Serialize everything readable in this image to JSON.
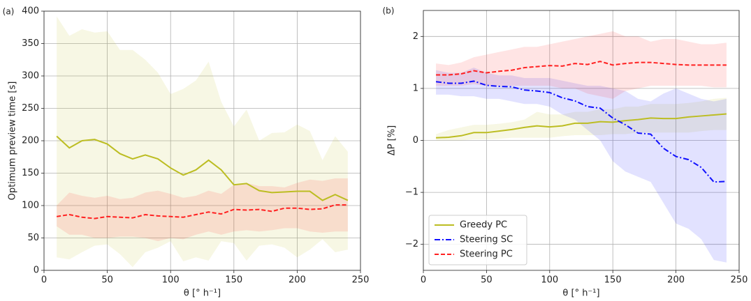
{
  "chart_data": [
    {
      "type": "line",
      "panel_label": "(a)",
      "x_label": "θ [° h⁻¹]",
      "y_label": "Optimum preview time [s]",
      "x": [
        10,
        20,
        30,
        40,
        50,
        60,
        70,
        80,
        90,
        100,
        110,
        120,
        130,
        140,
        150,
        160,
        170,
        180,
        190,
        200,
        210,
        220,
        230,
        240
      ],
      "xlim": [
        0,
        250
      ],
      "xticks": [
        0,
        50,
        100,
        150,
        200,
        250
      ],
      "ylim": [
        0,
        400
      ],
      "yticks": [
        0,
        50,
        100,
        150,
        200,
        250,
        300,
        350,
        400
      ],
      "grid": true,
      "series": [
        {
          "color": "#bcbd22",
          "dash": "solid",
          "values": [
            207,
            189,
            200,
            202,
            195,
            180,
            172,
            178,
            172,
            158,
            147,
            155,
            170,
            155,
            132,
            134,
            123,
            120,
            121,
            122,
            122,
            108,
            117,
            108
          ],
          "lower": [
            20,
            17,
            28,
            38,
            40,
            25,
            5,
            28,
            35,
            45,
            14,
            20,
            15,
            45,
            42,
            15,
            38,
            40,
            35,
            20,
            32,
            48,
            28,
            32
          ],
          "upper": [
            392,
            362,
            372,
            367,
            369,
            340,
            340,
            325,
            305,
            272,
            280,
            293,
            322,
            260,
            222,
            248,
            200,
            212,
            213,
            225,
            215,
            170,
            207,
            183
          ]
        },
        {
          "color": "#ff2020",
          "dash": "dashed",
          "values": [
            83,
            86,
            82,
            80,
            83,
            82,
            81,
            86,
            84,
            83,
            82,
            86,
            90,
            87,
            94,
            93,
            94,
            91,
            96,
            96,
            94,
            95,
            101,
            101
          ],
          "lower": [
            68,
            55,
            55,
            50,
            50,
            52,
            52,
            50,
            45,
            50,
            48,
            55,
            60,
            55,
            60,
            62,
            60,
            62,
            65,
            65,
            60,
            58,
            60,
            60
          ],
          "upper": [
            100,
            120,
            115,
            112,
            115,
            110,
            112,
            120,
            123,
            118,
            112,
            115,
            123,
            118,
            132,
            135,
            130,
            130,
            128,
            135,
            140,
            138,
            142,
            142
          ]
        }
      ]
    },
    {
      "type": "line",
      "panel_label": "(b)",
      "x_label": "θ [° h⁻¹]",
      "y_label": "ΔP [%]",
      "x": [
        10,
        20,
        30,
        40,
        50,
        60,
        70,
        80,
        90,
        100,
        110,
        120,
        130,
        140,
        150,
        160,
        170,
        180,
        190,
        200,
        210,
        220,
        230,
        240
      ],
      "xlim": [
        0,
        250
      ],
      "xticks": [
        0,
        50,
        100,
        150,
        200,
        250
      ],
      "ylim": [
        -2.5,
        2.5
      ],
      "yticks": [
        {
          "value": -2,
          "label": "−2"
        },
        {
          "value": -1,
          "label": "−1"
        },
        0,
        1,
        2
      ],
      "grid": true,
      "legend": "lower left",
      "series": [
        {
          "name": "Greedy PC",
          "color": "#bcbd22",
          "dash": "solid",
          "values": [
            0.05,
            0.06,
            0.09,
            0.15,
            0.15,
            0.18,
            0.21,
            0.25,
            0.28,
            0.26,
            0.28,
            0.33,
            0.33,
            0.36,
            0.35,
            0.38,
            0.4,
            0.43,
            0.42,
            0.42,
            0.45,
            0.47,
            0.49,
            0.51
          ],
          "lower": [
            0,
            0,
            0,
            0.02,
            0.02,
            0.03,
            0.05,
            0.05,
            0.05,
            0.05,
            0.08,
            0.1,
            0.1,
            0.1,
            0.12,
            0.12,
            0.15,
            0.15,
            0.15,
            0.15,
            0.15,
            0.18,
            0.2,
            0.2
          ],
          "upper": [
            0.12,
            0.2,
            0.25,
            0.3,
            0.3,
            0.32,
            0.35,
            0.4,
            0.55,
            0.5,
            0.5,
            0.55,
            0.55,
            0.6,
            0.6,
            0.65,
            0.65,
            0.7,
            0.7,
            0.7,
            0.72,
            0.75,
            0.8,
            0.82
          ]
        },
        {
          "name": "Steering SC",
          "color": "#1010ff",
          "dash": "dashdot",
          "values": [
            1.13,
            1.1,
            1.1,
            1.14,
            1.06,
            1.04,
            1.03,
            0.97,
            0.95,
            0.92,
            0.82,
            0.76,
            0.65,
            0.62,
            0.43,
            0.3,
            0.14,
            0.12,
            -0.15,
            -0.31,
            -0.37,
            -0.52,
            -0.8,
            -0.79
          ],
          "lower": [
            0.88,
            0.88,
            0.85,
            0.85,
            0.8,
            0.8,
            0.75,
            0.7,
            0.7,
            0.65,
            0.5,
            0.4,
            0.2,
            0.0,
            -0.4,
            -0.6,
            -0.7,
            -0.8,
            -1.2,
            -1.6,
            -1.7,
            -1.9,
            -2.3,
            -2.35
          ],
          "upper": [
            1.35,
            1.3,
            1.3,
            1.4,
            1.3,
            1.25,
            1.25,
            1.2,
            1.2,
            1.2,
            1.15,
            1.1,
            1.05,
            1.05,
            1.0,
            0.95,
            0.8,
            0.75,
            0.9,
            1.0,
            0.9,
            0.8,
            0.75,
            0.8
          ]
        },
        {
          "name": "Steering PC",
          "color": "#ff2020",
          "dash": "dashed",
          "values": [
            1.26,
            1.26,
            1.28,
            1.34,
            1.3,
            1.33,
            1.35,
            1.4,
            1.42,
            1.44,
            1.43,
            1.48,
            1.46,
            1.52,
            1.45,
            1.48,
            1.5,
            1.5,
            1.48,
            1.46,
            1.45,
            1.45,
            1.45,
            1.45
          ],
          "lower": [
            1.05,
            1.05,
            1.05,
            1.08,
            1.05,
            1.05,
            1.05,
            1.05,
            1.05,
            1.05,
            1.0,
            1.0,
            0.9,
            0.85,
            0.8,
            0.95,
            1.0,
            1.05,
            1.05,
            1.05,
            1.05,
            1.05,
            1.02,
            1.02
          ],
          "upper": [
            1.48,
            1.45,
            1.5,
            1.6,
            1.65,
            1.7,
            1.75,
            1.8,
            1.8,
            1.85,
            1.9,
            1.95,
            2.0,
            2.05,
            2.1,
            2.0,
            2.0,
            1.9,
            1.95,
            1.95,
            1.9,
            1.85,
            1.85,
            1.88
          ]
        }
      ]
    }
  ]
}
